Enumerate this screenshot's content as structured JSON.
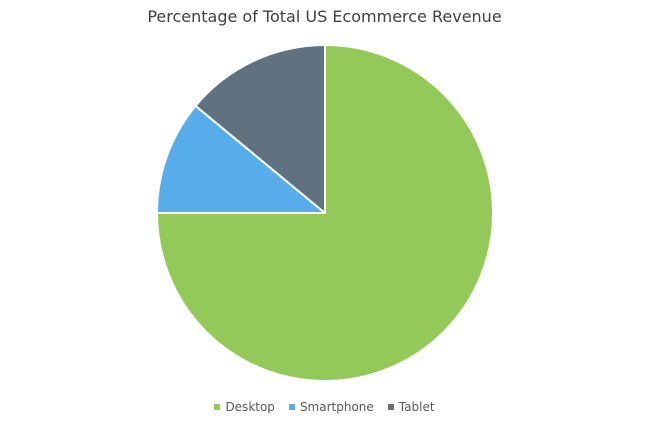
{
  "chart_data": {
    "type": "pie",
    "title": "Percentage of Total US Ecommerce Revenue",
    "categories": [
      "Desktop",
      "Smartphone",
      "Tablet"
    ],
    "values": [
      75,
      11,
      14
    ],
    "colors": [
      "#92c958",
      "#56adea",
      "#607180"
    ],
    "start_angle_deg": 0,
    "direction": "clockwise",
    "legend_position": "bottom"
  }
}
